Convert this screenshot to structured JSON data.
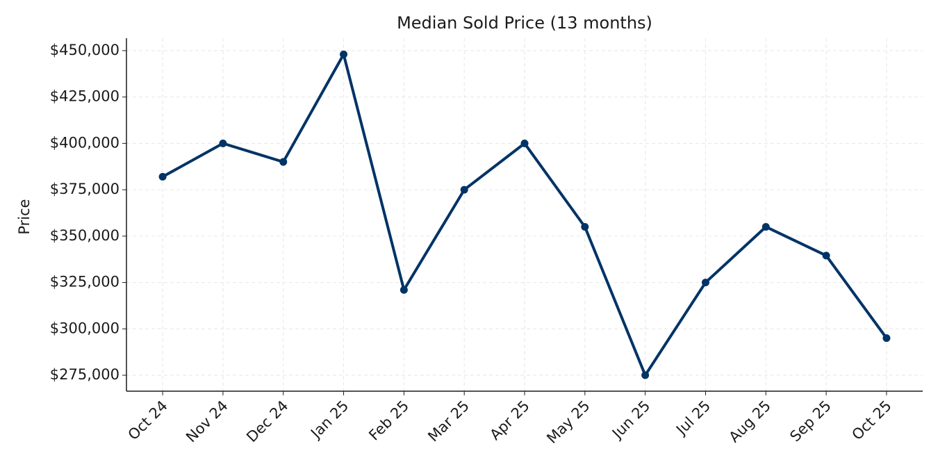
{
  "chart_data": {
    "type": "line",
    "title": "Median Sold Price (13 months)",
    "y_label": "Price",
    "categories": [
      "Oct 24",
      "Nov 24",
      "Dec 24",
      "Jan 25",
      "Feb 25",
      "Mar 25",
      "Apr 25",
      "May 25",
      "Jun 25",
      "Jul 25",
      "Aug 25",
      "Sep 25",
      "Oct 25"
    ],
    "series": [
      {
        "name": "Median Sold Price",
        "color": "#003366",
        "values": [
          382000,
          400000,
          390000,
          448000,
          321000,
          375000,
          400000,
          355000,
          275000,
          325000,
          355000,
          339500,
          295000
        ]
      }
    ],
    "ylim": [
      266400,
      456700
    ],
    "yticks": [
      {
        "value": 275000,
        "label": "$275,000"
      },
      {
        "value": 300000,
        "label": "$300,000"
      },
      {
        "value": 325000,
        "label": "$325,000"
      },
      {
        "value": 350000,
        "label": "$350,000"
      },
      {
        "value": 375000,
        "label": "$375,000"
      },
      {
        "value": 400000,
        "label": "$400,000"
      },
      {
        "value": 425000,
        "label": "$425,000"
      },
      {
        "value": 450000,
        "label": "$450,000"
      }
    ],
    "grid": true
  }
}
